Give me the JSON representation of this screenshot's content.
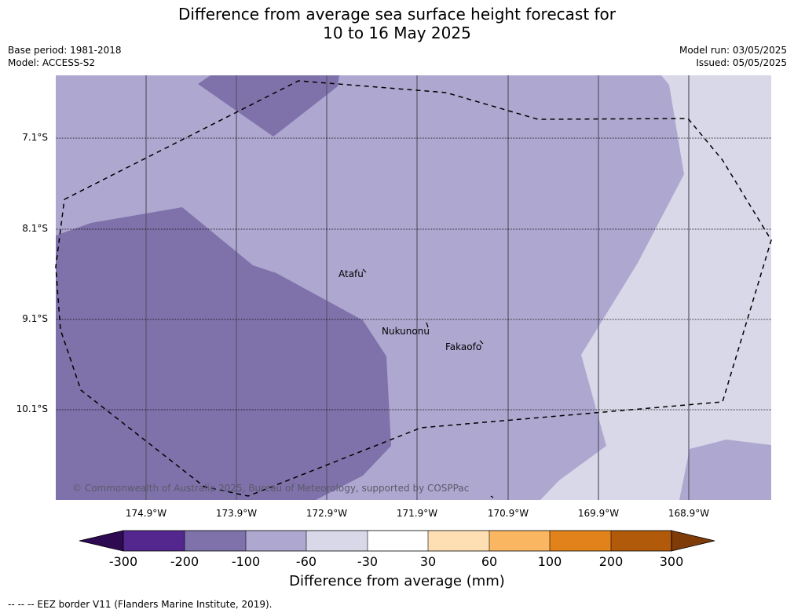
{
  "title_line1": "Difference from average sea surface height forecast for",
  "title_line2": "10 to 16 May 2025",
  "base_period": "Base period: 1981-2018",
  "model": "Model: ACCESS-S2",
  "model_run": "Model run: 03/05/2025",
  "issued": "Issued: 05/05/2025",
  "lat_labels": [
    "7.1°S",
    "8.1°S",
    "9.1°S",
    "10.1°S"
  ],
  "lon_labels": [
    "174.9°W",
    "173.9°W",
    "172.9°W",
    "171.9°W",
    "170.9°W",
    "169.9°W",
    "168.9°W"
  ],
  "places": {
    "atafu": "Atafu",
    "nukunonu": "Nukunonu",
    "fakaofo": "Fakaofo"
  },
  "copyright": "© Commonwealth of Australia 2025, Bureau of Meteorology, supported by COSPPac",
  "colorbar": {
    "ticks": [
      "-300",
      "-200",
      "-100",
      "-60",
      "-30",
      "30",
      "60",
      "100",
      "200",
      "300"
    ],
    "colors": [
      "#2d0a52",
      "#54278f",
      "#7f72aa",
      "#aea8d0",
      "#d8d8e8",
      "#ffffff",
      "#fedfb3",
      "#fbb661",
      "#e1821a",
      "#b15a09",
      "#7f3b08"
    ],
    "title": "Difference from average (mm)"
  },
  "legend_note": "--  --  -- EEZ border V11 (Flanders Marine Institute, 2019)."
}
